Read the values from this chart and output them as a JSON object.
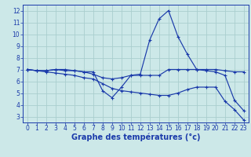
{
  "title": "Graphe des températures (°c)",
  "background_color": "#cce8e8",
  "grid_color": "#aacece",
  "line_color": "#1a3aaa",
  "xlim": [
    -0.5,
    23.5
  ],
  "ylim": [
    2.5,
    12.5
  ],
  "xticks": [
    0,
    1,
    2,
    3,
    4,
    5,
    6,
    7,
    8,
    9,
    10,
    11,
    12,
    13,
    14,
    15,
    16,
    17,
    18,
    19,
    20,
    21,
    22,
    23
  ],
  "yticks": [
    3,
    4,
    5,
    6,
    7,
    8,
    9,
    10,
    11,
    12
  ],
  "line1_x": [
    0,
    1,
    2,
    3,
    4,
    5,
    6,
    7,
    8,
    9,
    10,
    11,
    12,
    13,
    14,
    15,
    16,
    17,
    18,
    19,
    20,
    21,
    22,
    23
  ],
  "line1_y": [
    7.0,
    6.9,
    6.9,
    7.0,
    7.0,
    6.9,
    6.8,
    6.8,
    5.2,
    4.6,
    5.5,
    6.5,
    6.6,
    9.5,
    11.3,
    12.0,
    9.8,
    8.3,
    7.0,
    6.9,
    6.8,
    6.5,
    4.4,
    3.5
  ],
  "line2_x": [
    0,
    1,
    2,
    3,
    4,
    5,
    6,
    7,
    8,
    9,
    10,
    11,
    12,
    13,
    14,
    15,
    16,
    17,
    18,
    19,
    20,
    21,
    22,
    23
  ],
  "line2_y": [
    7.0,
    6.9,
    6.9,
    7.0,
    6.9,
    6.9,
    6.8,
    6.6,
    6.3,
    6.2,
    6.3,
    6.5,
    6.5,
    6.5,
    6.5,
    7.0,
    7.0,
    7.0,
    7.0,
    7.0,
    7.0,
    6.9,
    6.8,
    6.8
  ],
  "line3_x": [
    0,
    1,
    2,
    3,
    4,
    5,
    6,
    7,
    8,
    9,
    10,
    11,
    12,
    13,
    14,
    15,
    16,
    17,
    18,
    19,
    20,
    21,
    22,
    23
  ],
  "line3_y": [
    7.0,
    6.9,
    6.8,
    6.7,
    6.6,
    6.5,
    6.3,
    6.2,
    5.8,
    5.4,
    5.2,
    5.1,
    5.0,
    4.9,
    4.8,
    4.8,
    5.0,
    5.3,
    5.5,
    5.5,
    5.5,
    4.3,
    3.6,
    2.7
  ],
  "tick_fontsize": 5.5,
  "xlabel_fontsize": 7
}
